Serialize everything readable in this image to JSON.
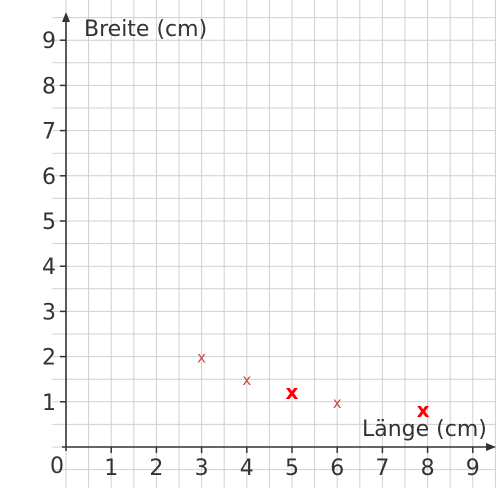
{
  "chart_data": {
    "type": "scatter",
    "xlabel": "Länge (cm)",
    "ylabel": "Breite (cm)",
    "xlim": [
      0,
      9
    ],
    "ylim": [
      0,
      9
    ],
    "x_ticks": [
      "1",
      "2",
      "3",
      "4",
      "5",
      "6",
      "7",
      "8",
      "9"
    ],
    "y_ticks": [
      "1",
      "2",
      "3",
      "4",
      "5",
      "6",
      "7",
      "8",
      "9"
    ],
    "origin_label": "0",
    "grid": true,
    "grid_step": 0.5,
    "series": [
      {
        "marker": "x",
        "color": "#c0504d",
        "points": [
          {
            "x": 3,
            "y": 2
          },
          {
            "x": 4,
            "y": 1.5
          },
          {
            "x": 6,
            "y": 1
          }
        ]
      },
      {
        "marker": "x",
        "color": "#ff0000",
        "points": [
          {
            "x": 5,
            "y": 1.2
          },
          {
            "x": 7.9,
            "y": 0.8
          }
        ]
      }
    ],
    "marker_symbol": "x",
    "colors": {
      "grid": "#cfcfcf",
      "axis": "#333333"
    }
  }
}
